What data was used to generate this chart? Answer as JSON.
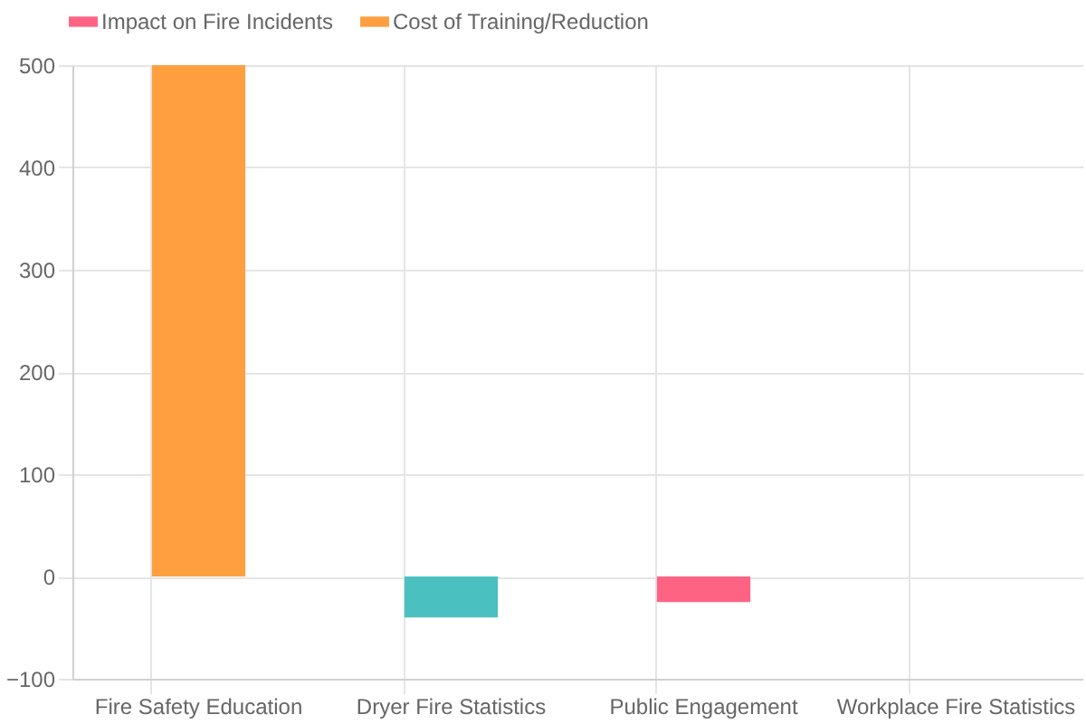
{
  "chart_data": {
    "type": "bar",
    "stacked": true,
    "categories": [
      "Fire Safety Education",
      "Dryer Fire Statistics",
      "Public Engagement",
      "Workplace Fire Statistics"
    ],
    "series": [
      {
        "name": "Impact on Fire Incidents",
        "color": "#ff6384",
        "values": [
          null,
          -40,
          -25,
          null
        ],
        "colors": [
          null,
          "#4bc0c0",
          "#ff6384",
          null
        ]
      },
      {
        "name": "Cost of Training/Reduction",
        "color": "#ff9f40",
        "values": [
          500,
          null,
          null,
          null
        ]
      }
    ],
    "ylim": [
      -100,
      500
    ],
    "yticks": [
      -100,
      0,
      100,
      200,
      300,
      400,
      500
    ],
    "grid": true,
    "legend": "top"
  }
}
